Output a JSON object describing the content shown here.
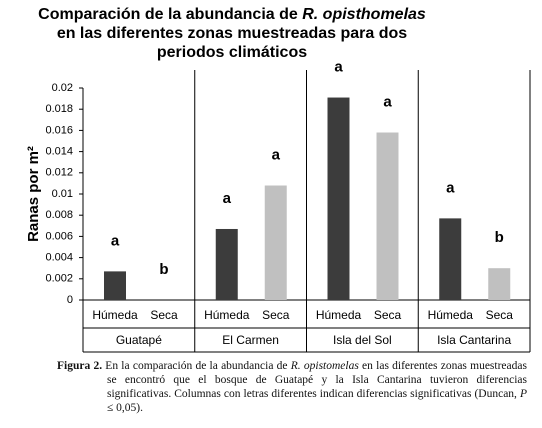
{
  "chart_data": {
    "type": "bar",
    "title": [
      {
        "text": "Comparación de la abundancia de ",
        "italic": "R. opisthomelas"
      },
      {
        "text": "en las diferentes zonas muestreadas para dos"
      },
      {
        "text": "periodos climáticos"
      }
    ],
    "y_label": "Ranas por m²",
    "categories": [
      "Guatapé",
      "El Carmen",
      "Isla del Sol",
      "Isla Cantarina"
    ],
    "series": [
      {
        "name": "Húmeda",
        "color": "#3c3c3c",
        "values": [
          0.0027,
          0.0067,
          0.0191,
          0.0077
        ],
        "letters": [
          "a",
          "a",
          "a",
          "a"
        ]
      },
      {
        "name": "Seca",
        "color": "#c0c0c0",
        "values": [
          0,
          0.0108,
          0.0158,
          0.003
        ],
        "letters": [
          "b",
          "a",
          "a",
          "b"
        ]
      }
    ],
    "ylim": [
      0,
      0.02
    ],
    "yticks": [
      0,
      0.002,
      0.004,
      0.006,
      0.008,
      0.01,
      0.012,
      0.014,
      0.016,
      0.018,
      0.02
    ],
    "grid": false
  },
  "caption": [
    {
      "text": "Figura 2.",
      "style": "bold"
    },
    {
      "text": " En la comparación de la abundancia de ",
      "style": "normal"
    },
    {
      "text": "R. opistomelas",
      "style": "italic"
    },
    {
      "text": " en las diferentes zonas muestreadas se encontró que el bosque de Guatapé y la Isla Cantarina tuvieron diferencias significativas. Columnas con letras diferentes indican diferencias significativas (Duncan, ",
      "style": "normal"
    },
    {
      "text": "P",
      "style": "italic"
    },
    {
      "text": " ≤ 0,05).",
      "style": "normal"
    }
  ]
}
